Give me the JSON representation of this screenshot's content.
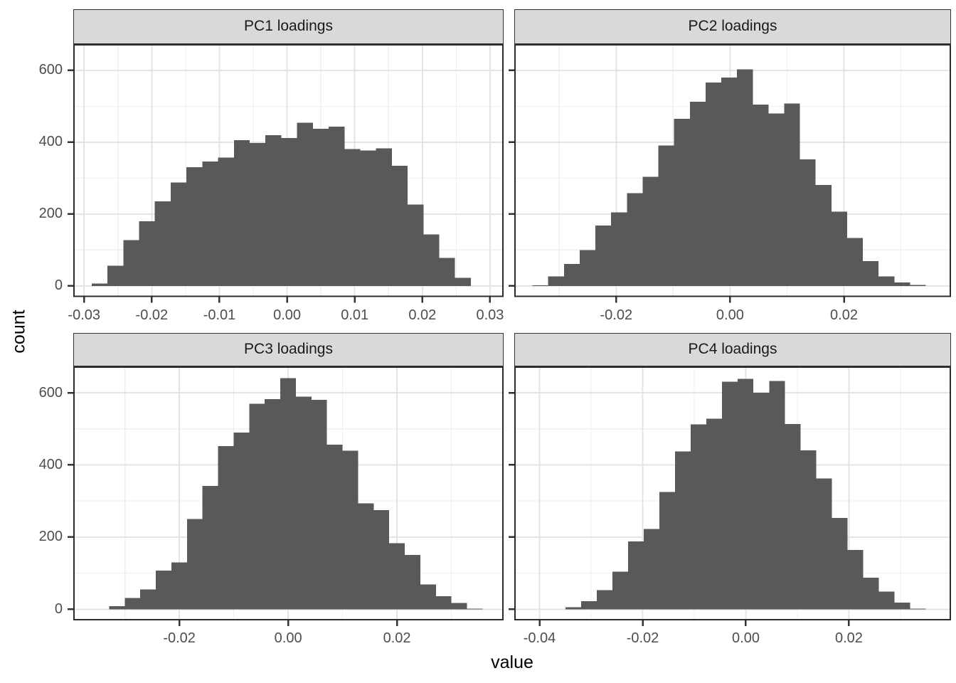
{
  "figure": {
    "xlab": "value",
    "ylab": "count"
  },
  "colors": {
    "bar": "#595959",
    "strip_bg": "#D9D9D9",
    "strip_border": "#333333",
    "panel_border": "#2B2B2B",
    "panel_bg": "#FFFFFF",
    "grid_major": "#E4E4E4",
    "grid_minor": "#EFEFEF",
    "tick": "#333333",
    "tick_label_color": "#4D4D4D",
    "strip_text": "#1A1A1A",
    "axis_title": "#000000"
  },
  "chart_data": {
    "type": "bar",
    "subtype": "faceted-histograms",
    "title": "",
    "xlabel": "value",
    "ylabel": "count",
    "grid": true,
    "y_axis": {
      "major": [
        0,
        200,
        400,
        600
      ],
      "labels": [
        "0",
        "200",
        "400",
        "600"
      ],
      "minor": [
        100,
        300,
        500
      ],
      "lim": [
        -31,
        673
      ]
    },
    "facets": [
      {
        "label": "PC1 loadings",
        "xlim": [
          -0.0316,
          0.032
        ],
        "bin_start": -0.02888,
        "bin_width": 0.002335,
        "counts": [
          7,
          56,
          127,
          180,
          235,
          288,
          330,
          346,
          357,
          406,
          398,
          420,
          412,
          454,
          437,
          443,
          381,
          377,
          383,
          334,
          226,
          143,
          78,
          22
        ],
        "x_major": [
          -0.03,
          -0.02,
          -0.01,
          0,
          0.01,
          0.02,
          0.03
        ],
        "x_labels": [
          "-0.03",
          "-0.02",
          "-0.01",
          "0.00",
          "0.01",
          "0.02",
          "0.03"
        ],
        "x_minor": [
          -0.025,
          -0.015,
          -0.005,
          0.005,
          0.015,
          0.025
        ]
      },
      {
        "label": "PC2 loadings",
        "xlim": [
          -0.0379,
          0.0388
        ],
        "bin_start": -0.0347,
        "bin_width": 0.002763,
        "counts": [
          2,
          26,
          61,
          100,
          168,
          205,
          258,
          304,
          391,
          465,
          513,
          566,
          580,
          603,
          505,
          480,
          508,
          352,
          281,
          207,
          133,
          69,
          26,
          10,
          3
        ],
        "x_major": [
          -0.02,
          0,
          0.02
        ],
        "x_labels": [
          "-0.02",
          "0.00",
          "0.02"
        ],
        "x_minor": [
          -0.03,
          -0.01,
          0.01,
          0.03
        ]
      },
      {
        "label": "PC3 loadings",
        "xlim": [
          -0.0395,
          0.0396
        ],
        "bin_start": -0.0329,
        "bin_width": 0.00286,
        "counts": [
          8,
          31,
          55,
          107,
          130,
          250,
          342,
          452,
          490,
          569,
          582,
          640,
          589,
          580,
          456,
          439,
          293,
          275,
          183,
          150,
          69,
          36,
          17,
          2
        ],
        "x_major": [
          -0.02,
          0,
          0.02
        ],
        "x_labels": [
          "-0.02",
          "0.00",
          "0.02"
        ],
        "x_minor": [
          -0.03,
          -0.01,
          0.01,
          0.03
        ]
      },
      {
        "label": "PC4 loadings",
        "xlim": [
          -0.0449,
          0.0398
        ],
        "bin_start": -0.035,
        "bin_width": 0.00304,
        "counts": [
          5,
          22,
          53,
          104,
          188,
          222,
          325,
          437,
          512,
          528,
          631,
          638,
          600,
          633,
          513,
          440,
          362,
          253,
          164,
          87,
          49,
          18,
          2
        ],
        "x_major": [
          -0.04,
          -0.02,
          0,
          0.02
        ],
        "x_labels": [
          "-0.04",
          "-0.02",
          "0.00",
          "0.02"
        ],
        "x_minor": [
          -0.03,
          -0.01,
          0.01,
          0.03
        ]
      }
    ]
  }
}
